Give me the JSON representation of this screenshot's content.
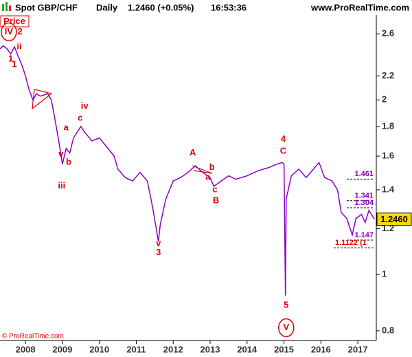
{
  "chart_data": {
    "type": "line",
    "title": "Spot GBP/CHF",
    "period": "Daily",
    "quote": "1.2460 (+0.05%)",
    "time": "16:53:36",
    "source": "www.ProRealTime.com",
    "panel_label": "Price",
    "copyright": "© ProRealTime.com",
    "log_scale": true,
    "grid": false,
    "xlim": [
      2007.31,
      2017.5
    ],
    "xticks": [
      2008,
      2009,
      2010,
      2011,
      2012,
      2013,
      2014,
      2015,
      2016,
      2017
    ],
    "ylim": [
      0.77,
      2.8
    ],
    "yticks": [
      0.8,
      1,
      1.2,
      1.4,
      1.6,
      1.8,
      2,
      2.2,
      2.6
    ],
    "x": [
      2007.31,
      2007.4,
      2007.5,
      2007.6,
      2007.7,
      2007.8,
      2007.9,
      2008.0,
      2008.1,
      2008.2,
      2008.3,
      2008.4,
      2008.5,
      2008.6,
      2008.7,
      2008.8,
      2008.9,
      2009.0,
      2009.1,
      2009.2,
      2009.3,
      2009.5,
      2009.6,
      2009.8,
      2010.0,
      2010.2,
      2010.4,
      2010.5,
      2010.7,
      2010.9,
      2011.1,
      2011.3,
      2011.45,
      2011.6,
      2011.65,
      2011.8,
      2012.0,
      2012.2,
      2012.4,
      2012.6,
      2012.8,
      2013.0,
      2013.1,
      2013.3,
      2013.5,
      2013.7,
      2014.0,
      2014.3,
      2014.6,
      2014.8,
      2014.95,
      2015.0,
      2015.04,
      2015.06,
      2015.2,
      2015.4,
      2015.6,
      2015.8,
      2015.95,
      2016.1,
      2016.3,
      2016.45,
      2016.55,
      2016.7,
      2016.85,
      2016.95,
      2017.1,
      2017.2,
      2017.3,
      2017.45
    ],
    "series": [
      {
        "name": "Price",
        "color": "#8b00c8",
        "values": [
          2.45,
          2.48,
          2.45,
          2.4,
          2.47,
          2.38,
          2.3,
          2.2,
          2.08,
          2.0,
          2.05,
          2.03,
          2.04,
          2.05,
          2.0,
          1.85,
          1.7,
          1.55,
          1.65,
          1.62,
          1.72,
          1.8,
          1.76,
          1.7,
          1.72,
          1.66,
          1.6,
          1.52,
          1.47,
          1.45,
          1.5,
          1.45,
          1.3,
          1.14,
          1.22,
          1.35,
          1.45,
          1.47,
          1.5,
          1.54,
          1.5,
          1.47,
          1.42,
          1.45,
          1.48,
          1.46,
          1.48,
          1.51,
          1.53,
          1.55,
          1.56,
          1.55,
          0.92,
          1.35,
          1.48,
          1.52,
          1.47,
          1.52,
          1.56,
          1.47,
          1.45,
          1.4,
          1.28,
          1.25,
          1.17,
          1.25,
          1.27,
          1.23,
          1.29,
          1.246
        ]
      }
    ],
    "last_price": {
      "value": 1.246,
      "label": "1.2460"
    },
    "levels": [
      {
        "value": 1.461,
        "label": "1.461",
        "color": "#8b00c8"
      },
      {
        "value": 1.341,
        "label": "1.341",
        "color": "#8b00c8"
      },
      {
        "value": 1.304,
        "label": "1.304",
        "color": "#8b00c8"
      },
      {
        "value": 1.147,
        "label": "1.147",
        "color": "#8b00c8"
      },
      {
        "value": 1.1122,
        "label": "1.1122 (1",
        "color": "#e00000"
      }
    ],
    "annotations": [
      {
        "text": "IV",
        "x": 2007.55,
        "y": 2.62,
        "circled": true
      },
      {
        "text": "2",
        "x": 2007.85,
        "y": 2.62
      },
      {
        "text": "ii",
        "x": 2007.83,
        "y": 2.47
      },
      {
        "text": "1",
        "x": 2007.6,
        "y": 2.35
      },
      {
        "text": "1",
        "x": 2007.7,
        "y": 2.3
      },
      {
        "text": "a",
        "x": 2009.1,
        "y": 1.79
      },
      {
        "text": "c",
        "x": 2009.48,
        "y": 1.86
      },
      {
        "text": "iv",
        "x": 2009.6,
        "y": 1.95
      },
      {
        "text": "v",
        "x": 2008.96,
        "y": 1.61
      },
      {
        "text": "b",
        "x": 2009.17,
        "y": 1.56
      },
      {
        "text": "iii",
        "x": 2008.98,
        "y": 1.42
      },
      {
        "text": "v",
        "x": 2011.6,
        "y": 1.13
      },
      {
        "text": "3",
        "x": 2011.6,
        "y": 1.09
      },
      {
        "text": "A",
        "x": 2012.53,
        "y": 1.62
      },
      {
        "text": "b",
        "x": 2013.05,
        "y": 1.53
      },
      {
        "text": "a",
        "x": 2012.94,
        "y": 1.47
      },
      {
        "text": "c",
        "x": 2013.13,
        "y": 1.4
      },
      {
        "text": "B",
        "x": 2013.16,
        "y": 1.34
      },
      {
        "text": "4",
        "x": 2014.98,
        "y": 1.71
      },
      {
        "text": "C",
        "x": 2014.98,
        "y": 1.63
      },
      {
        "text": "5",
        "x": 2015.06,
        "y": 0.885
      },
      {
        "text": "V",
        "x": 2015.06,
        "y": 0.81,
        "circled": true
      }
    ],
    "annotation_color": "#e00000"
  }
}
